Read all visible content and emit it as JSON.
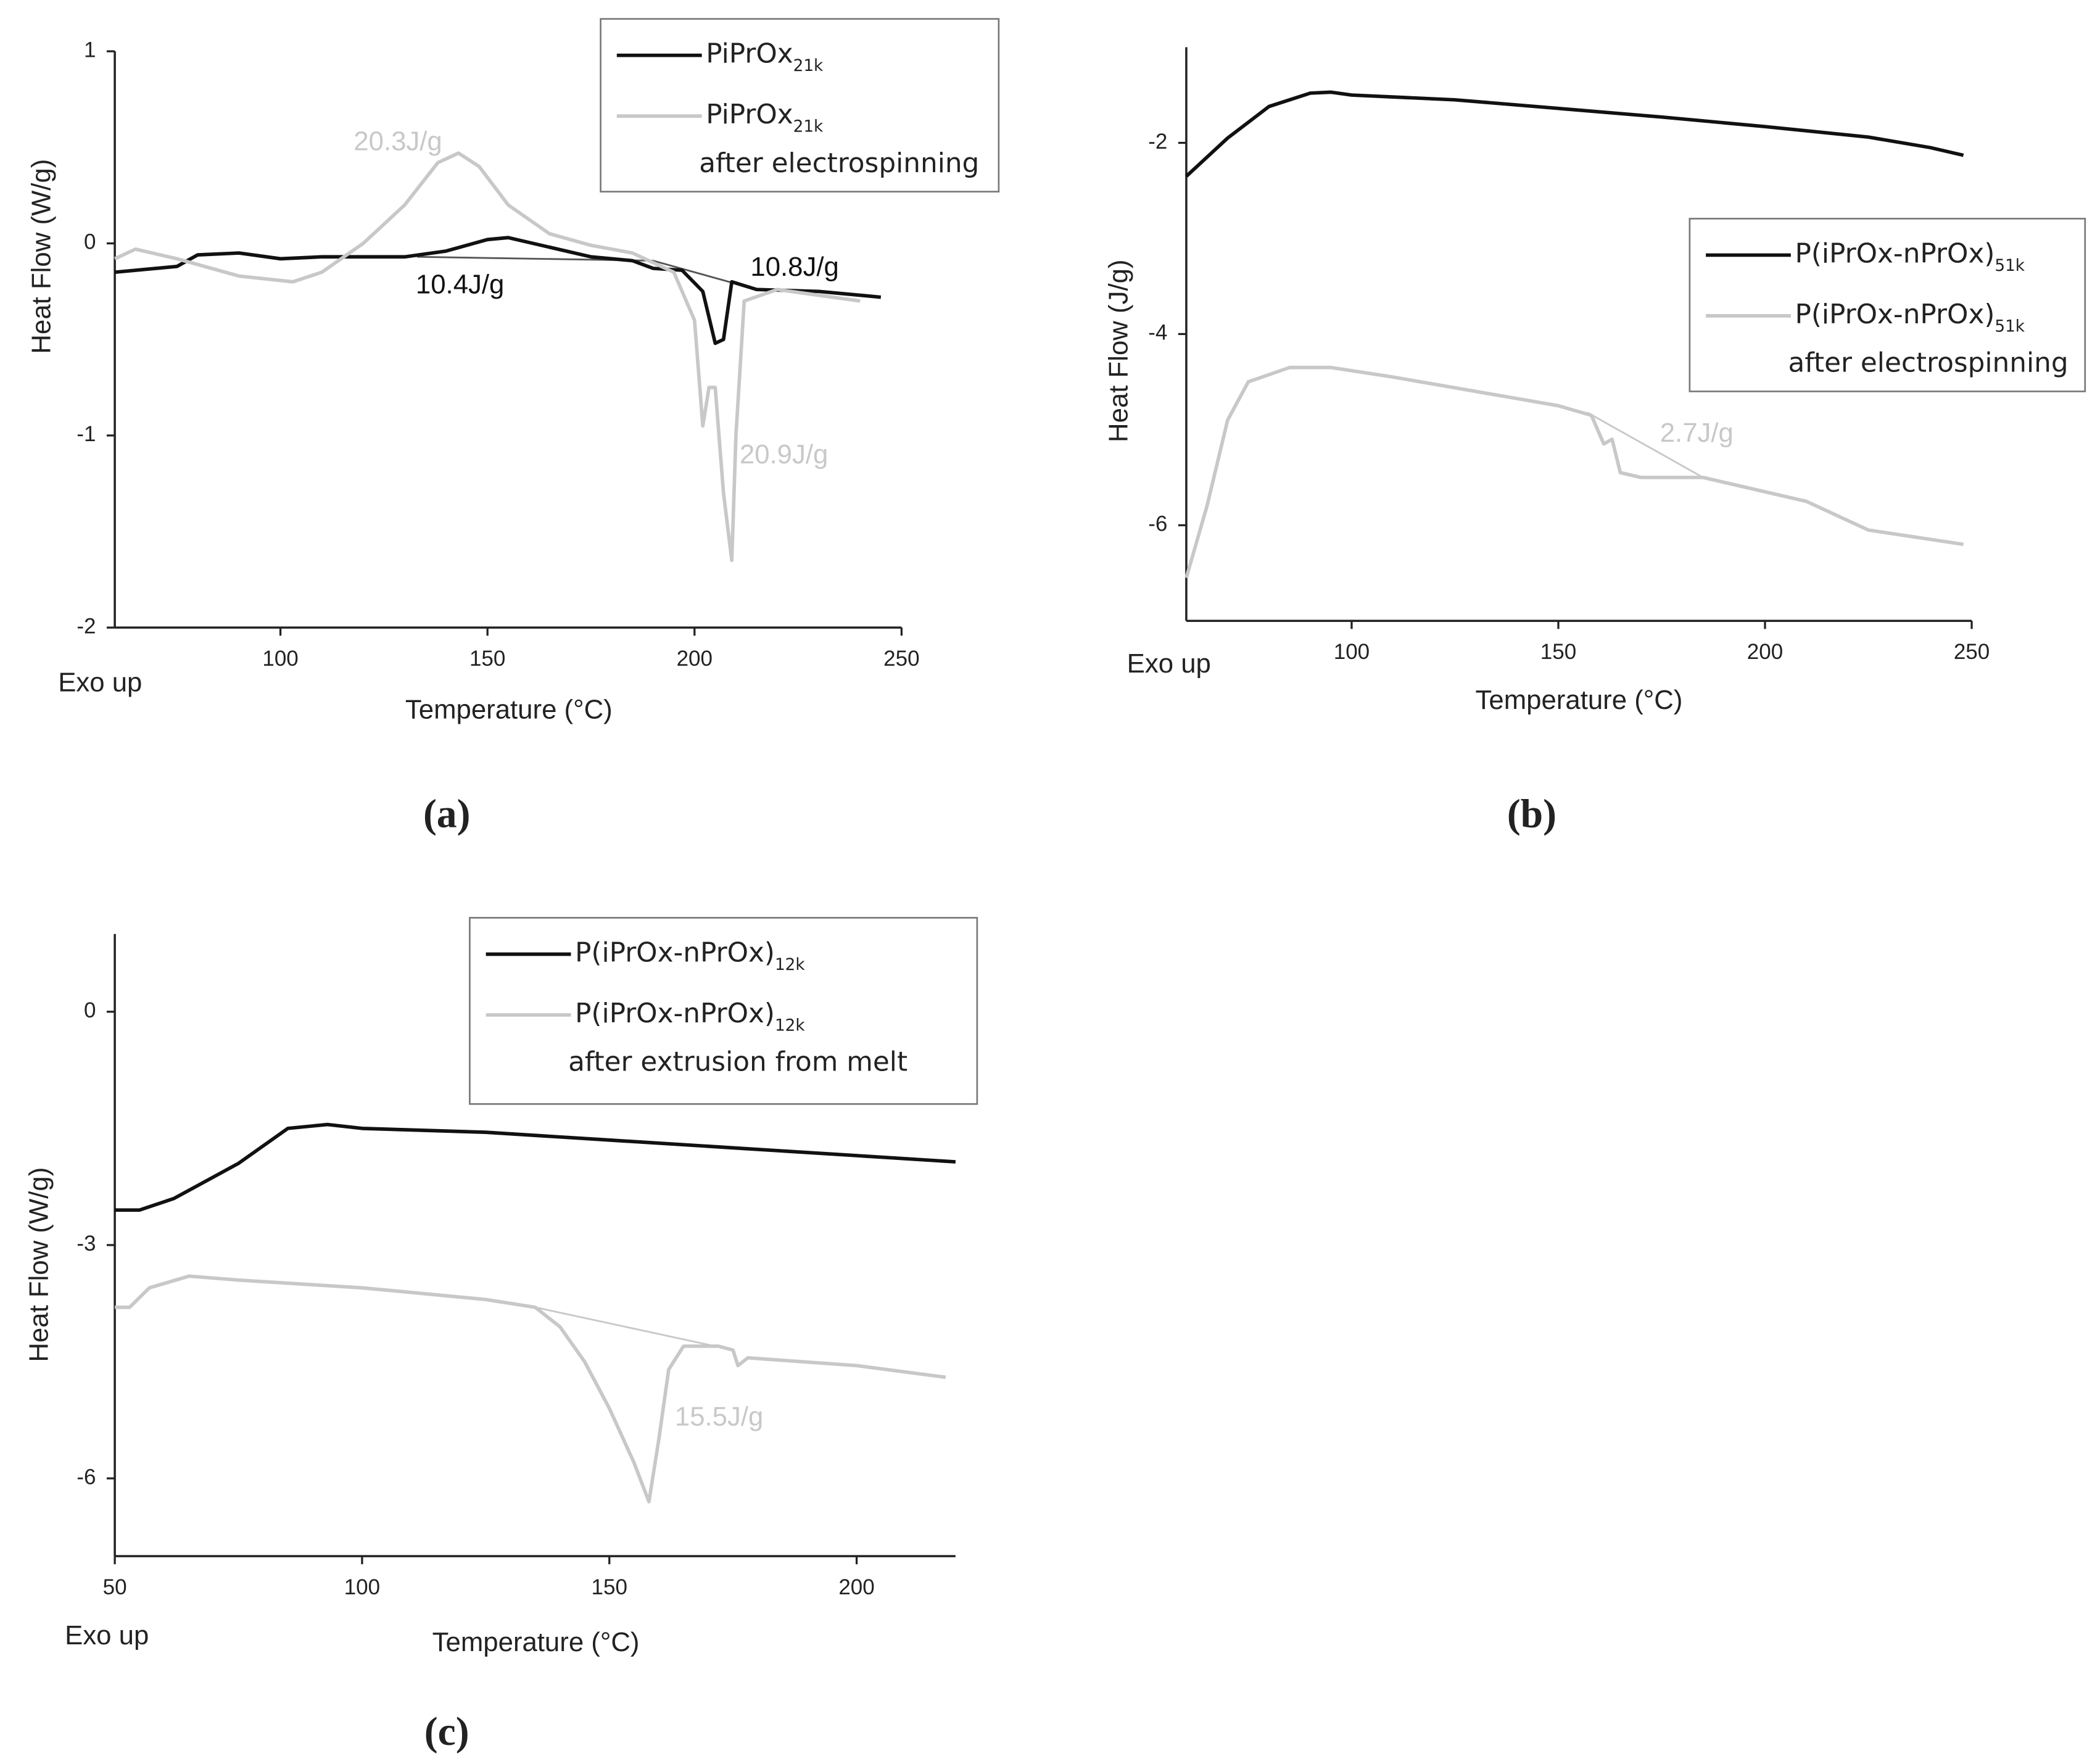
{
  "chart_data": [
    {
      "type": "line",
      "panel_label": "(a)",
      "note": "Exo up",
      "x_label": "Temperature (°C)",
      "y_label": "Heat Flow (W/g)",
      "xlim": [
        60,
        250
      ],
      "xticks": [
        100,
        150,
        200,
        250
      ],
      "ylim": [
        -2,
        1
      ],
      "yticks": [
        -2,
        -1,
        0,
        1
      ],
      "series": [
        {
          "name": "PiPrOx",
          "subscript": "21k",
          "color": "#111111",
          "x": [
            60,
            75,
            80,
            90,
            100,
            110,
            130,
            140,
            150,
            155,
            165,
            175,
            185,
            190,
            197,
            202,
            205,
            207,
            209,
            215,
            230,
            245
          ],
          "values": [
            -0.15,
            -0.12,
            -0.06,
            -0.05,
            -0.08,
            -0.07,
            -0.07,
            -0.04,
            0.02,
            0.03,
            -0.02,
            -0.07,
            -0.09,
            -0.13,
            -0.14,
            -0.25,
            -0.52,
            -0.5,
            -0.2,
            -0.24,
            -0.25,
            -0.28
          ]
        },
        {
          "name": "PiPrOx",
          "subscript": "21k",
          "note": "after electrospinning",
          "color": "#c8c8c8",
          "x": [
            60,
            65,
            75,
            90,
            103,
            110,
            120,
            130,
            138,
            143,
            148,
            155,
            165,
            175,
            185,
            195,
            200,
            202,
            203.5,
            205,
            207,
            209,
            210,
            212,
            220,
            240
          ],
          "values": [
            -0.08,
            -0.03,
            -0.08,
            -0.17,
            -0.2,
            -0.15,
            0.0,
            0.2,
            0.42,
            0.47,
            0.4,
            0.2,
            0.05,
            -0.01,
            -0.05,
            -0.15,
            -0.4,
            -0.95,
            -0.75,
            -0.75,
            -1.3,
            -1.65,
            -1.0,
            -0.3,
            -0.24,
            -0.3
          ]
        }
      ],
      "baselines": [
        {
          "color": "#555555",
          "x": [
            133,
            190,
            215
          ],
          "values": [
            -0.07,
            -0.09,
            -0.24
          ]
        }
      ],
      "annotations": [
        {
          "text": "20.3J/g",
          "color": "#c8c8c8"
        },
        {
          "text": "10.4J/g",
          "color": "#111111"
        },
        {
          "text": "10.8J/g",
          "color": "#111111"
        },
        {
          "text": "20.9J/g",
          "color": "#c8c8c8"
        }
      ]
    },
    {
      "type": "line",
      "panel_label": "(b)",
      "note": "Exo up",
      "x_label": "Temperature (°C)",
      "y_label": "Heat Flow (J/g)",
      "xlim": [
        60,
        250
      ],
      "xticks": [
        100,
        150,
        200,
        250
      ],
      "ylim": [
        -7,
        -1
      ],
      "yticks": [
        -6,
        -4,
        -2
      ],
      "series": [
        {
          "name": "P(iPrOx-nPrOx)",
          "subscript": "51k",
          "color": "#111111",
          "x": [
            60,
            70,
            80,
            90,
            95,
            100,
            125,
            150,
            175,
            200,
            225,
            240,
            248
          ],
          "values": [
            -2.35,
            -1.95,
            -1.62,
            -1.48,
            -1.47,
            -1.5,
            -1.55,
            -1.64,
            -1.73,
            -1.83,
            -1.94,
            -2.05,
            -2.13
          ]
        },
        {
          "name": "P(iPrOx-nPrOx)",
          "subscript": "51k",
          "note": "after electrospinning",
          "color": "#c8c8c8",
          "x": [
            60,
            65,
            70,
            75,
            85,
            95,
            110,
            130,
            150,
            158,
            161,
            163,
            165,
            170,
            185,
            200,
            210,
            225,
            248
          ],
          "values": [
            -6.55,
            -5.8,
            -4.9,
            -4.5,
            -4.35,
            -4.35,
            -4.45,
            -4.6,
            -4.75,
            -4.85,
            -5.15,
            -5.1,
            -5.45,
            -5.5,
            -5.5,
            -5.65,
            -5.75,
            -6.05,
            -6.2
          ]
        }
      ],
      "baselines": [
        {
          "color": "#c8c8c8",
          "x": [
            157,
            185
          ],
          "values": [
            -4.82,
            -5.5
          ]
        }
      ],
      "annotations": [
        {
          "text": "2.7J/g",
          "color": "#c8c8c8"
        }
      ]
    },
    {
      "type": "line",
      "panel_label": "(c)",
      "note": "Exo up",
      "x_label": "Temperature (°C)",
      "y_label": "Heat Flow (W/g)",
      "xlim": [
        50,
        220
      ],
      "xticks": [
        50,
        100,
        150,
        200
      ],
      "ylim": [
        -7,
        1
      ],
      "yticks": [
        -6,
        -3,
        0
      ],
      "series": [
        {
          "name": "P(iPrOx-nPrOx)",
          "subscript": "12k",
          "color": "#111111",
          "x": [
            50,
            55,
            62,
            75,
            85,
            93,
            100,
            125,
            150,
            175,
            200,
            220
          ],
          "values": [
            -2.55,
            -2.55,
            -2.4,
            -1.95,
            -1.5,
            -1.45,
            -1.5,
            -1.55,
            -1.65,
            -1.75,
            -1.85,
            -1.93
          ]
        },
        {
          "name": "P(iPrOx-nPrOx)",
          "subscript": "12k",
          "note": "after extrusion from melt",
          "color": "#c8c8c8",
          "x": [
            50,
            53,
            57,
            65,
            75,
            100,
            125,
            135,
            140,
            145,
            150,
            155,
            158,
            160,
            162,
            165,
            172,
            175,
            176,
            178,
            200,
            218
          ],
          "values": [
            -3.8,
            -3.8,
            -3.55,
            -3.4,
            -3.45,
            -3.55,
            -3.7,
            -3.8,
            -4.05,
            -4.5,
            -5.1,
            -5.8,
            -6.3,
            -5.5,
            -4.6,
            -4.3,
            -4.3,
            -4.35,
            -4.55,
            -4.45,
            -4.55,
            -4.7
          ]
        }
      ],
      "baselines": [
        {
          "color": "#c8c8c8",
          "x": [
            135,
            175
          ],
          "values": [
            -3.8,
            -4.35
          ]
        }
      ],
      "annotations": [
        {
          "text": "15.5J/g",
          "color": "#c8c8c8"
        }
      ]
    }
  ]
}
